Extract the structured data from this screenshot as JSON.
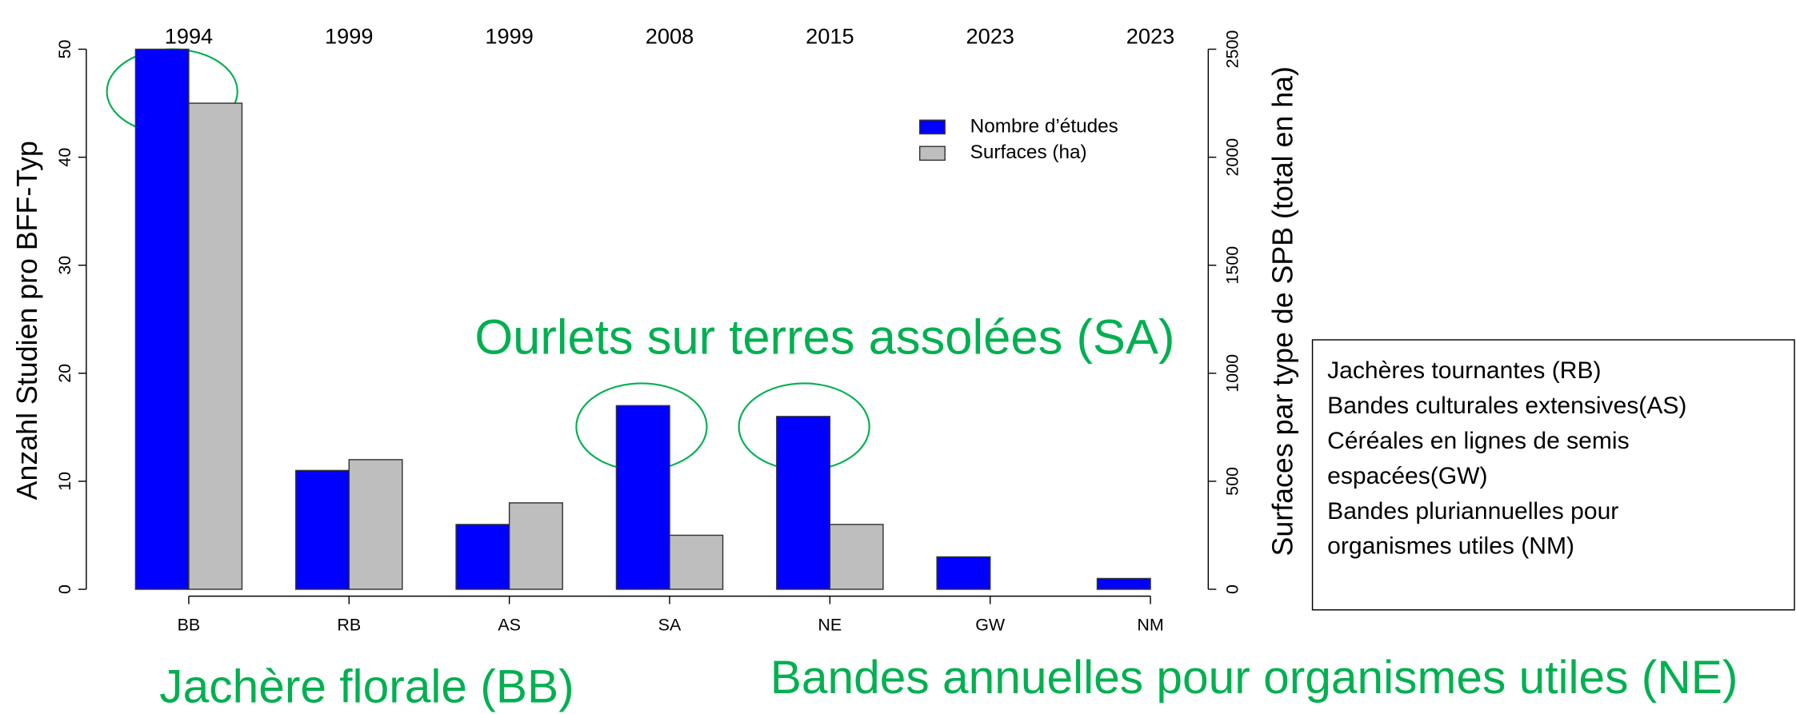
{
  "chart_data": {
    "type": "bar",
    "categories": [
      "BB",
      "RB",
      "AS",
      "SA",
      "NE",
      "GW",
      "NM"
    ],
    "top_labels": [
      "1994",
      "1999",
      "1999",
      "2008",
      "2015",
      "2023",
      "2023"
    ],
    "series": [
      {
        "name": "Nombre d’études",
        "color": "#0000ff",
        "values": [
          50,
          11,
          6,
          17,
          16,
          3,
          1
        ]
      },
      {
        "name": "Surfaces (ha)",
        "color": "#bebebe",
        "axis": "y2",
        "values": [
          2250,
          600,
          400,
          250,
          300,
          0,
          0
        ]
      }
    ],
    "ylabel": "Anzahl Studien pro BFF-Typ",
    "y2label": "Surfaces par type de SPB (total en ha)",
    "ylim": [
      0,
      50
    ],
    "yticks": [
      0,
      10,
      20,
      30,
      40,
      50
    ],
    "y2lim": [
      0,
      2500
    ],
    "y2ticks": [
      0,
      500,
      1000,
      1500,
      2000,
      2500
    ],
    "annotations": [
      "Ourlets sur terres assolées (SA)",
      "Jachère florale (BB)",
      "Bandes annuelles pour organismes utiles (NE)"
    ],
    "text_box": [
      "Jachères tournantes (RB)",
      "Bandes culturales extensives(AS)",
      "Céréales en lignes de semis",
      "espacées(GW)",
      "Bandes pluriannuelles pour",
      "organismes utiles (NM)"
    ]
  }
}
